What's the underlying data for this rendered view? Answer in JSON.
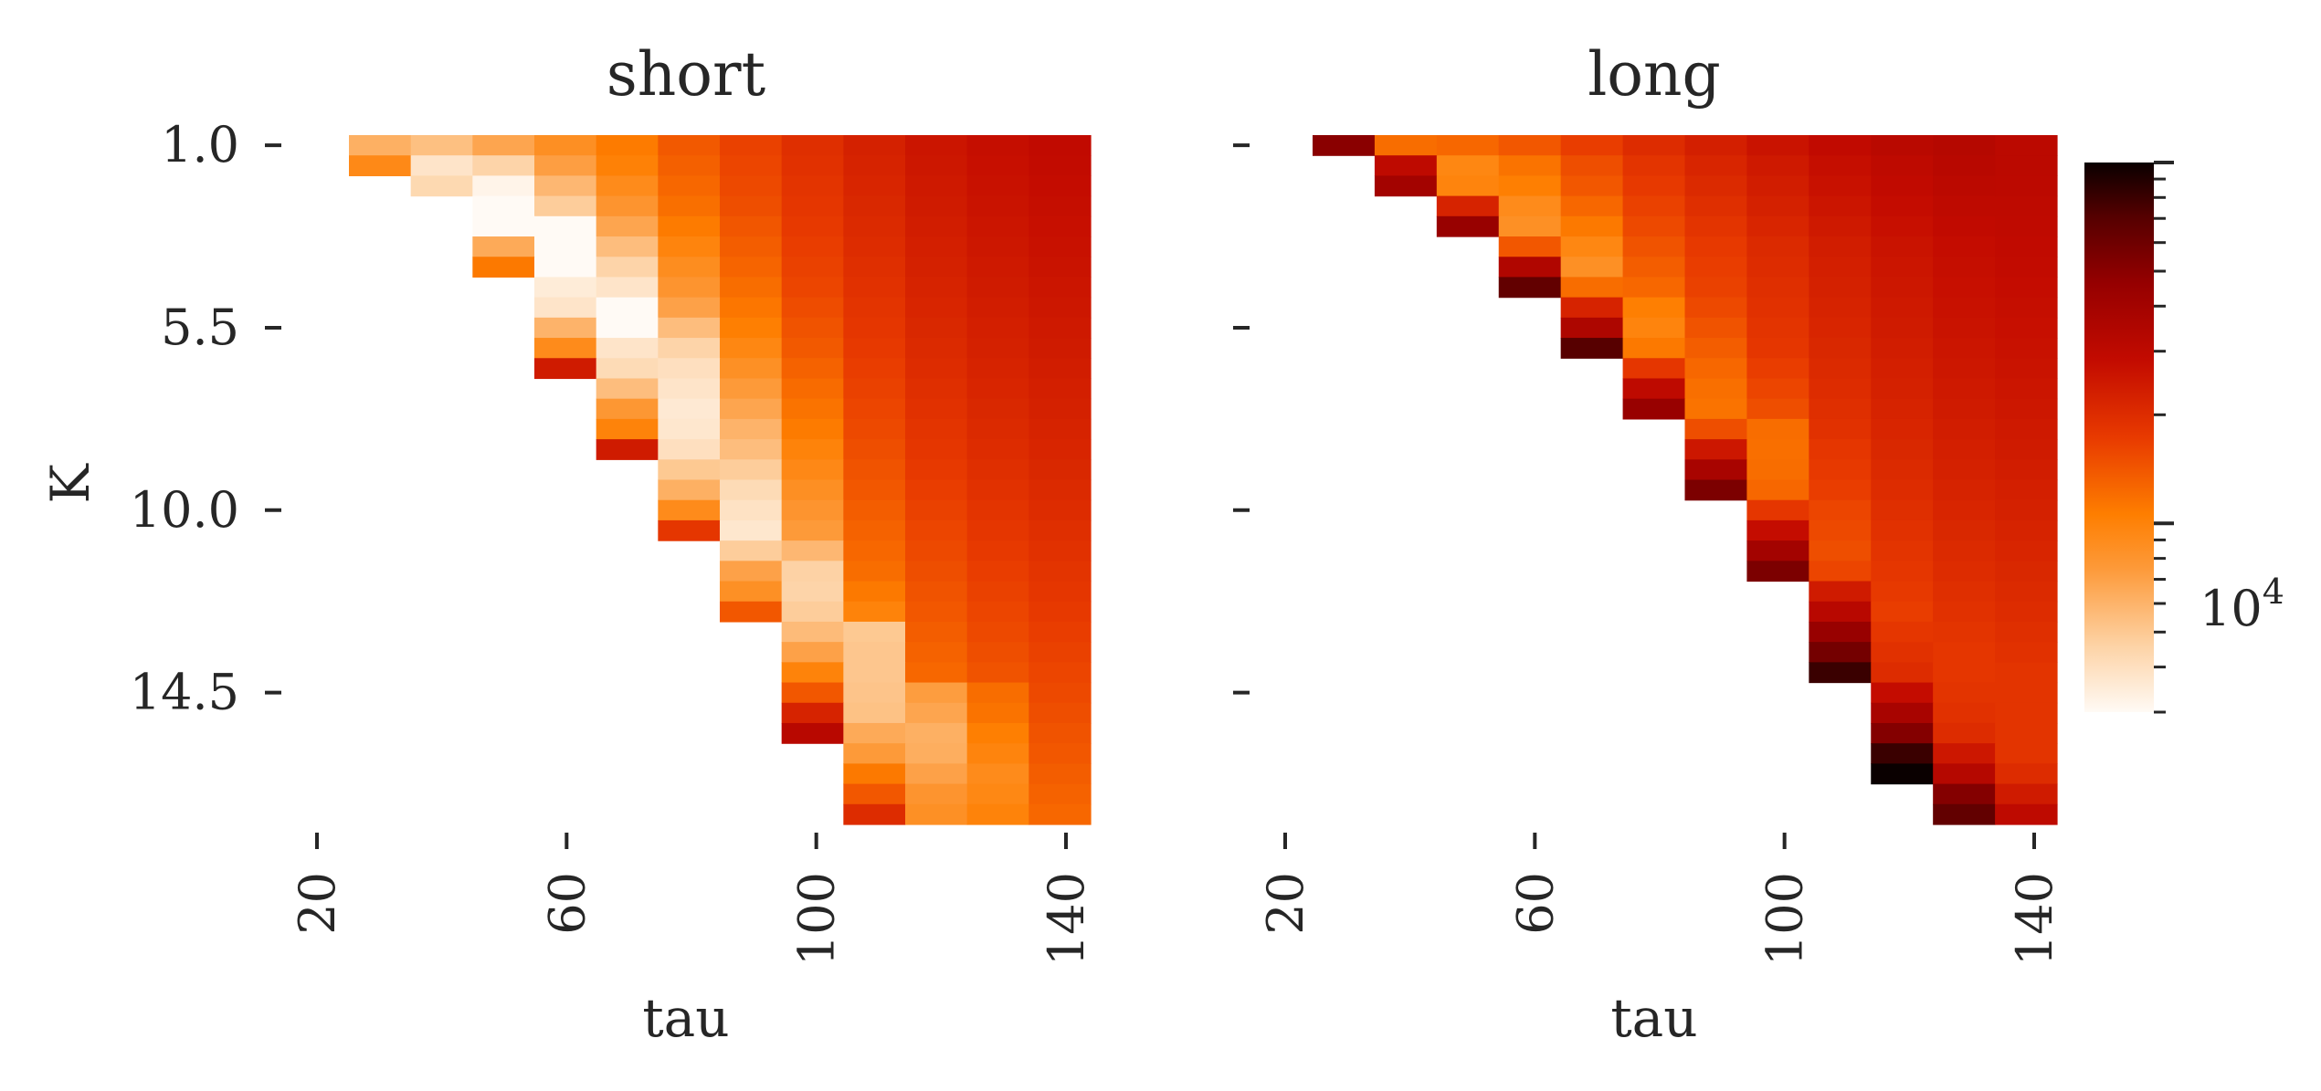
{
  "chart_data": [
    {
      "type": "heatmap",
      "title": "short",
      "xlabel": "tau",
      "ylabel": "K",
      "x_ticks": [
        "20",
        "60",
        "100",
        "140"
      ],
      "y_ticks": [
        "1.0",
        "5.5",
        "10.0",
        "14.5"
      ],
      "tau_values": [
        30,
        40,
        50,
        60,
        70,
        80,
        90,
        100,
        110,
        120,
        130,
        140
      ],
      "K_values": [
        1.0,
        1.5,
        2.0,
        2.5,
        3.0,
        3.5,
        4.0,
        4.5,
        5.0,
        5.5,
        6.0,
        6.5,
        7.0,
        7.5,
        8.0,
        8.5,
        9.0,
        9.5,
        10.0,
        10.5,
        11.0,
        11.5,
        12.0,
        12.5,
        13.0,
        13.5,
        14.0,
        14.5,
        15.0,
        15.5,
        16.0,
        16.5,
        17.0,
        17.5
      ],
      "value_scale": "log",
      "values": [
        [
          6200,
          5400,
          6800,
          8600,
          10800,
          13800,
          16500,
          19500,
          22500,
          25500,
          27500,
          29000
        ],
        [
          9200,
          3800,
          4500,
          7200,
          10200,
          13200,
          16000,
          19000,
          22000,
          25000,
          27000,
          28500
        ],
        [
          null,
          4300,
          3200,
          5800,
          9000,
          12500,
          15500,
          18500,
          21500,
          24500,
          26500,
          28000
        ],
        [
          null,
          null,
          3000,
          4800,
          8000,
          11800,
          15000,
          18000,
          21000,
          24000,
          26000,
          27500
        ],
        [
          null,
          null,
          2700,
          3000,
          6800,
          10800,
          14200,
          17500,
          20500,
          23500,
          25500,
          27000
        ],
        [
          null,
          null,
          6500,
          2800,
          5500,
          9800,
          13500,
          17000,
          20000,
          23000,
          25000,
          26500
        ],
        [
          null,
          null,
          11000,
          2700,
          4500,
          8800,
          12800,
          16500,
          19500,
          22500,
          24500,
          26000
        ],
        [
          null,
          null,
          null,
          3500,
          3800,
          8000,
          12000,
          16000,
          19000,
          22000,
          24000,
          25500
        ],
        [
          null,
          null,
          null,
          3800,
          2700,
          7000,
          11200,
          15200,
          18500,
          21500,
          23500,
          25000
        ],
        [
          null,
          null,
          null,
          6000,
          3000,
          5500,
          10500,
          14500,
          18000,
          21000,
          23000,
          24500
        ],
        [
          null,
          null,
          null,
          9000,
          3800,
          4500,
          9500,
          13800,
          17500,
          20500,
          22500,
          24000
        ],
        [
          null,
          null,
          null,
          24000,
          4200,
          4000,
          8500,
          13000,
          17000,
          20000,
          22000,
          23500
        ],
        [
          null,
          null,
          null,
          null,
          5500,
          3800,
          7500,
          12200,
          16500,
          19500,
          21500,
          23000
        ],
        [
          null,
          null,
          null,
          null,
          7800,
          3600,
          6800,
          11500,
          16000,
          19000,
          21000,
          22500
        ],
        [
          null,
          null,
          null,
          null,
          10000,
          3700,
          6000,
          10800,
          15500,
          18500,
          20500,
          22000
        ],
        [
          null,
          null,
          null,
          null,
          24000,
          4000,
          5500,
          10000,
          15000,
          18000,
          20000,
          21500
        ],
        [
          null,
          null,
          null,
          null,
          null,
          5000,
          4800,
          9300,
          14500,
          17500,
          19500,
          21000
        ],
        [
          null,
          null,
          null,
          null,
          null,
          6200,
          4200,
          8600,
          14000,
          17000,
          19000,
          20500
        ],
        [
          null,
          null,
          null,
          null,
          null,
          9000,
          3900,
          8000,
          13500,
          16500,
          18500,
          20000
        ],
        [
          null,
          null,
          null,
          null,
          null,
          18000,
          3700,
          7500,
          13000,
          16000,
          18000,
          19500
        ],
        [
          null,
          null,
          null,
          null,
          null,
          null,
          4800,
          5800,
          12500,
          15500,
          17500,
          19000
        ],
        [
          null,
          null,
          null,
          null,
          null,
          null,
          7000,
          4600,
          12000,
          15000,
          17000,
          18500
        ],
        [
          null,
          null,
          null,
          null,
          null,
          null,
          8500,
          4500,
          11000,
          14500,
          16500,
          18000
        ],
        [
          null,
          null,
          null,
          null,
          null,
          null,
          14000,
          4800,
          10000,
          14000,
          16000,
          17500
        ],
        [
          null,
          null,
          null,
          null,
          null,
          null,
          null,
          5600,
          5000,
          13500,
          15500,
          17000
        ],
        [
          null,
          null,
          null,
          null,
          null,
          null,
          null,
          7000,
          5100,
          13000,
          15000,
          16500
        ],
        [
          null,
          null,
          null,
          null,
          null,
          null,
          null,
          10000,
          5100,
          12500,
          14500,
          16000
        ],
        [
          null,
          null,
          null,
          null,
          null,
          null,
          null,
          14000,
          5200,
          7300,
          12000,
          15500
        ],
        [
          null,
          null,
          null,
          null,
          null,
          null,
          null,
          22000,
          5300,
          6800,
          11500,
          15000
        ],
        [
          null,
          null,
          null,
          null,
          null,
          null,
          null,
          32000,
          6500,
          6200,
          10500,
          14500
        ],
        [
          null,
          null,
          null,
          null,
          null,
          null,
          null,
          null,
          7500,
          6300,
          9800,
          14000
        ],
        [
          null,
          null,
          null,
          null,
          null,
          null,
          null,
          null,
          11000,
          7000,
          9000,
          13500
        ],
        [
          null,
          null,
          null,
          null,
          null,
          null,
          null,
          null,
          14000,
          8000,
          9400,
          13000
        ],
        [
          null,
          null,
          null,
          null,
          null,
          null,
          null,
          null,
          20000,
          8500,
          10000,
          12500
        ]
      ]
    },
    {
      "type": "heatmap",
      "title": "long",
      "xlabel": "tau",
      "ylabel": "",
      "x_ticks": [
        "20",
        "60",
        "100",
        "140"
      ],
      "y_ticks": [
        "1.0",
        "5.5",
        "10.0",
        "14.5"
      ],
      "tau_values": [
        30,
        40,
        50,
        60,
        70,
        80,
        90,
        100,
        110,
        120,
        130,
        140
      ],
      "K_values": [
        1.0,
        1.5,
        2.0,
        2.5,
        3.0,
        3.5,
        4.0,
        4.5,
        5.0,
        5.5,
        6.0,
        6.5,
        7.0,
        7.5,
        8.0,
        8.5,
        9.0,
        9.5,
        10.0,
        10.5,
        11.0,
        11.5,
        12.0,
        12.5,
        13.0,
        13.5,
        14.0,
        14.5,
        15.0,
        15.5,
        16.0,
        16.5,
        17.0,
        17.5
      ],
      "value_scale": "log",
      "values": [
        [
          50000,
          12000,
          12500,
          14000,
          17000,
          20000,
          23000,
          26000,
          29000,
          31500,
          33000,
          31000
        ],
        [
          null,
          30000,
          9500,
          11500,
          15000,
          18500,
          21500,
          24500,
          27500,
          30000,
          32000,
          31000
        ],
        [
          null,
          40000,
          9800,
          10500,
          14000,
          17500,
          20500,
          23500,
          26500,
          29000,
          31000,
          30500
        ],
        [
          null,
          null,
          22000,
          9000,
          12500,
          16500,
          19500,
          22500,
          25500,
          28000,
          30000,
          30000
        ],
        [
          null,
          null,
          45000,
          8500,
          11000,
          15500,
          18500,
          21500,
          24500,
          27000,
          29000,
          29500
        ],
        [
          null,
          null,
          null,
          14000,
          9500,
          14500,
          17500,
          20500,
          23500,
          26000,
          28000,
          29000
        ],
        [
          null,
          null,
          null,
          35000,
          8500,
          13500,
          17000,
          20000,
          23000,
          25500,
          27500,
          28500
        ],
        [
          null,
          null,
          null,
          65000,
          12000,
          12500,
          16500,
          19500,
          22500,
          25000,
          27000,
          28000
        ],
        [
          null,
          null,
          null,
          null,
          22000,
          10500,
          15500,
          19000,
          22000,
          24500,
          26500,
          27500
        ],
        [
          null,
          null,
          null,
          null,
          36000,
          9800,
          14500,
          18500,
          21500,
          24000,
          26000,
          27000
        ],
        [
          null,
          null,
          null,
          null,
          70000,
          11000,
          13500,
          18000,
          21000,
          23500,
          25500,
          26500
        ],
        [
          null,
          null,
          null,
          null,
          null,
          18000,
          12500,
          17000,
          20500,
          23000,
          25000,
          26000
        ],
        [
          null,
          null,
          null,
          null,
          null,
          30000,
          11800,
          16000,
          20000,
          22500,
          24500,
          25500
        ],
        [
          null,
          null,
          null,
          null,
          null,
          45000,
          11500,
          15000,
          19500,
          22000,
          24000,
          25000
        ],
        [
          null,
          null,
          null,
          null,
          null,
          null,
          15000,
          12000,
          19000,
          21500,
          23500,
          24500
        ],
        [
          null,
          null,
          null,
          null,
          null,
          null,
          25000,
          11800,
          18000,
          21000,
          23000,
          24000
        ],
        [
          null,
          null,
          null,
          null,
          null,
          null,
          38000,
          12000,
          17500,
          20500,
          22500,
          23500
        ],
        [
          null,
          null,
          null,
          null,
          null,
          null,
          55000,
          12500,
          17000,
          20000,
          22000,
          23000
        ],
        [
          null,
          null,
          null,
          null,
          null,
          null,
          null,
          18000,
          16000,
          19500,
          21500,
          22500
        ],
        [
          null,
          null,
          null,
          null,
          null,
          null,
          null,
          28000,
          15500,
          19000,
          21000,
          22000
        ],
        [
          null,
          null,
          null,
          null,
          null,
          null,
          null,
          40000,
          15000,
          18500,
          20500,
          21500
        ],
        [
          null,
          null,
          null,
          null,
          null,
          null,
          null,
          55000,
          16000,
          18000,
          20000,
          21000
        ],
        [
          null,
          null,
          null,
          null,
          null,
          null,
          null,
          null,
          24000,
          17500,
          19500,
          20500
        ],
        [
          null,
          null,
          null,
          null,
          null,
          null,
          null,
          null,
          32000,
          17000,
          19000,
          20000
        ],
        [
          null,
          null,
          null,
          null,
          null,
          null,
          null,
          null,
          45000,
          18000,
          18500,
          19500
        ],
        [
          null,
          null,
          null,
          null,
          null,
          null,
          null,
          null,
          58000,
          19000,
          18000,
          19000
        ],
        [
          null,
          null,
          null,
          null,
          null,
          null,
          null,
          null,
          80000,
          20000,
          18000,
          18500
        ],
        [
          null,
          null,
          null,
          null,
          null,
          null,
          null,
          null,
          null,
          28000,
          18500,
          18500
        ],
        [
          null,
          null,
          null,
          null,
          null,
          null,
          null,
          null,
          null,
          38000,
          19000,
          18500
        ],
        [
          null,
          null,
          null,
          null,
          null,
          null,
          null,
          null,
          null,
          52000,
          20000,
          18500
        ],
        [
          null,
          null,
          null,
          null,
          null,
          null,
          null,
          null,
          null,
          80000,
          25000,
          18500
        ],
        [
          null,
          null,
          null,
          null,
          null,
          null,
          null,
          null,
          null,
          100000,
          33000,
          20000
        ],
        [
          null,
          null,
          null,
          null,
          null,
          null,
          null,
          null,
          null,
          null,
          52000,
          24000
        ],
        [
          null,
          null,
          null,
          null,
          null,
          null,
          null,
          null,
          null,
          null,
          65000,
          30000
        ]
      ]
    }
  ],
  "colorbar": {
    "colormap": "gist_heat_r",
    "scale": "log",
    "min": 3000,
    "max": 100000,
    "tick_label_base": "10",
    "tick_label_exp": "4",
    "tick_value": 10000
  }
}
